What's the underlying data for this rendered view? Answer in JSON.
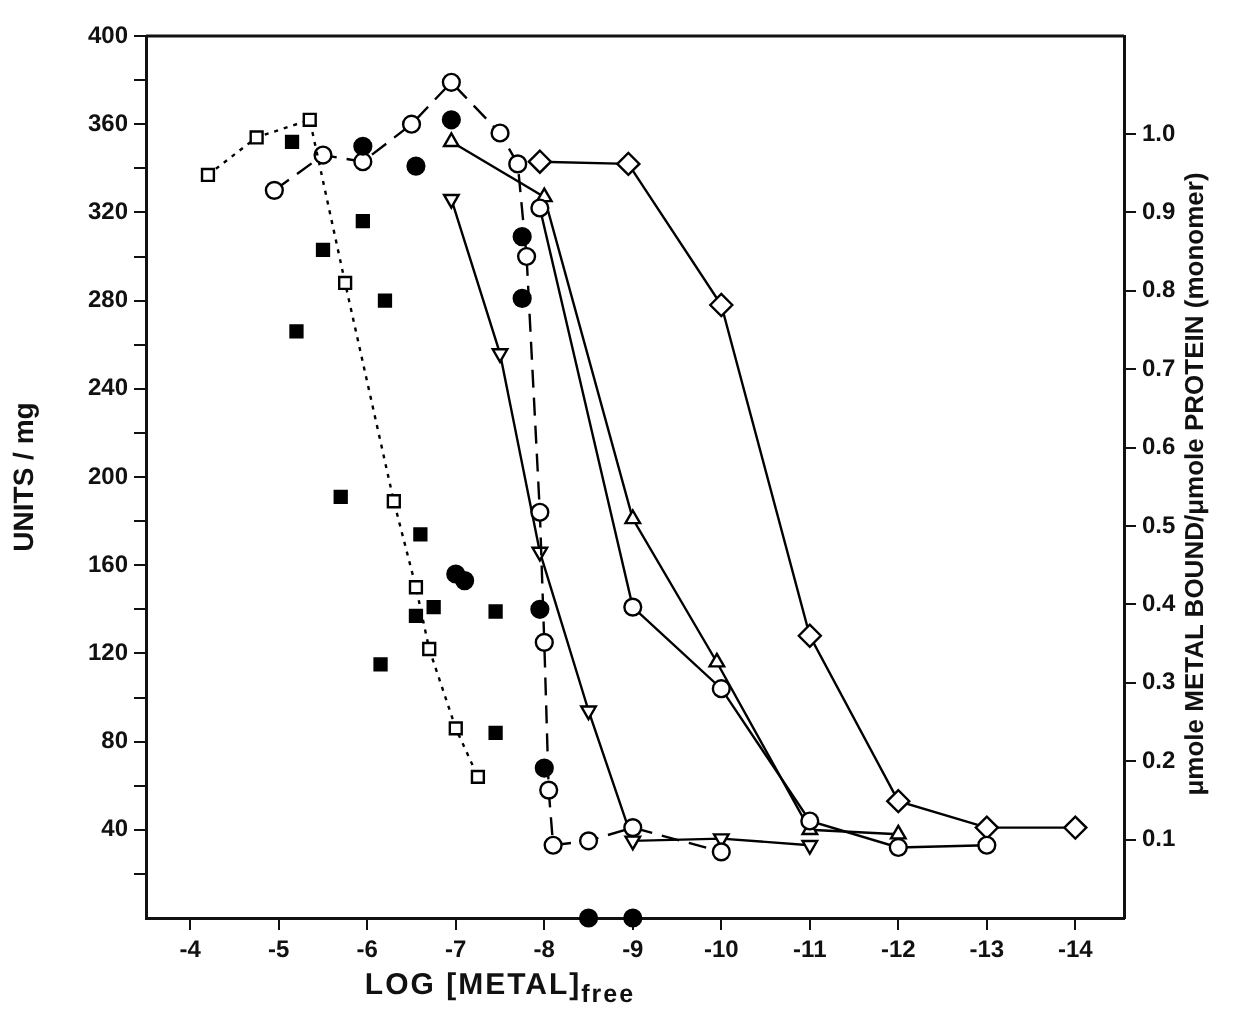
{
  "chart_data": {
    "type": "line",
    "xlabel": "LOG  [METAL]$_{free}$",
    "ylabel": "UNITS / mg",
    "y2label": "μmole METAL BOUND/μmole PROTEIN (monomer)",
    "xlim": [
      -3.5,
      -14.55
    ],
    "xticks": [
      -4,
      -5,
      -6,
      -7,
      -8,
      -9,
      -10,
      -11,
      -12,
      -13,
      -14
    ],
    "ylim": [
      0,
      400
    ],
    "yticks": [
      {
        "value": 20,
        "label": null
      },
      40,
      {
        "value": 60,
        "label": null
      },
      80,
      {
        "value": 100,
        "label": null
      },
      120,
      {
        "value": 140,
        "label": null
      },
      160,
      {
        "value": 180,
        "label": null
      },
      200,
      {
        "value": 220,
        "label": null
      },
      240,
      {
        "value": 260,
        "label": null
      },
      280,
      {
        "value": 300,
        "label": null
      },
      320,
      {
        "value": 340,
        "label": null
      },
      360,
      {
        "value": 380,
        "label": null
      },
      400
    ],
    "y2lim": [
      0,
      1.125
    ],
    "y2ticks": [
      0.1,
      0.2,
      0.3,
      0.4,
      0.5,
      0.6,
      0.7,
      0.8,
      0.9,
      {
        "value": 1,
        "label": "1.0"
      }
    ],
    "grid": false,
    "series": [
      {
        "marker": "square",
        "line_style": "dotted",
        "color": "#000000",
        "x": [
          -4.2,
          -4.75,
          -5.35,
          -5.75,
          -6.3,
          -6.55,
          -6.7,
          -7,
          -7.25
        ],
        "values": [
          337,
          354,
          362,
          288,
          189,
          150,
          122,
          86,
          64
        ]
      },
      {
        "type": "scatter",
        "marker": "square",
        "color": "#000000",
        "x": [
          -5.15,
          -5.95,
          -5.5,
          -6.2,
          -5.2,
          -5.7,
          -6.6,
          -6.15,
          -6.55,
          -6.75,
          -7.45,
          -7.45
        ],
        "values": [
          352,
          316,
          303,
          280,
          266,
          191,
          174,
          115,
          137,
          141,
          139,
          84
        ]
      },
      {
        "type": "scatter",
        "marker": "circle",
        "color": "#000000",
        "x": [
          -5.95,
          -6.55,
          -6.95,
          -7.75,
          -7.75,
          -7.95,
          -8,
          -7,
          -7.1,
          -8.5,
          -9
        ],
        "values": [
          350,
          341,
          362,
          309,
          281,
          140,
          68,
          156,
          153,
          0,
          0
        ]
      },
      {
        "marker": "circle",
        "line_style": "dashed",
        "color": "#000000",
        "x": [
          -4.95,
          -5.5,
          -5.95,
          -6.5,
          -6.95,
          -7.5,
          -7.7,
          -7.8,
          -7.95,
          -8,
          -8.05,
          -8.1,
          -8.5,
          -9,
          -10
        ],
        "values": [
          330,
          346,
          343,
          360,
          379,
          356,
          342,
          300,
          184,
          125,
          58,
          33,
          35,
          41,
          30
        ]
      },
      {
        "marker": "circle",
        "line_style": "solid",
        "color": "#000000",
        "x": [
          -7.95,
          -9,
          -10,
          -11,
          -12,
          -13
        ],
        "values": [
          322,
          141,
          104,
          44,
          32,
          33
        ]
      },
      {
        "marker": "triangle",
        "line_style": "solid",
        "color": "#000000",
        "x": [
          -6.95,
          -8,
          -9,
          -9.95,
          -11,
          -12
        ],
        "values": [
          352,
          327,
          181,
          116,
          40,
          38
        ]
      },
      {
        "marker": "triangle-down",
        "line_style": "solid",
        "color": "#000000",
        "x": [
          -6.95,
          -7.5,
          -7.95,
          -8.5,
          -9,
          -10,
          -11
        ],
        "values": [
          326,
          256,
          166,
          94,
          35,
          36,
          33
        ]
      },
      {
        "marker": "diamond",
        "line_style": "solid",
        "color": "#000000",
        "x": [
          -7.95,
          -8.95,
          -10,
          -11,
          -12,
          -13,
          -14
        ],
        "values": [
          343,
          342,
          278,
          128,
          53,
          41,
          41
        ]
      }
    ]
  }
}
